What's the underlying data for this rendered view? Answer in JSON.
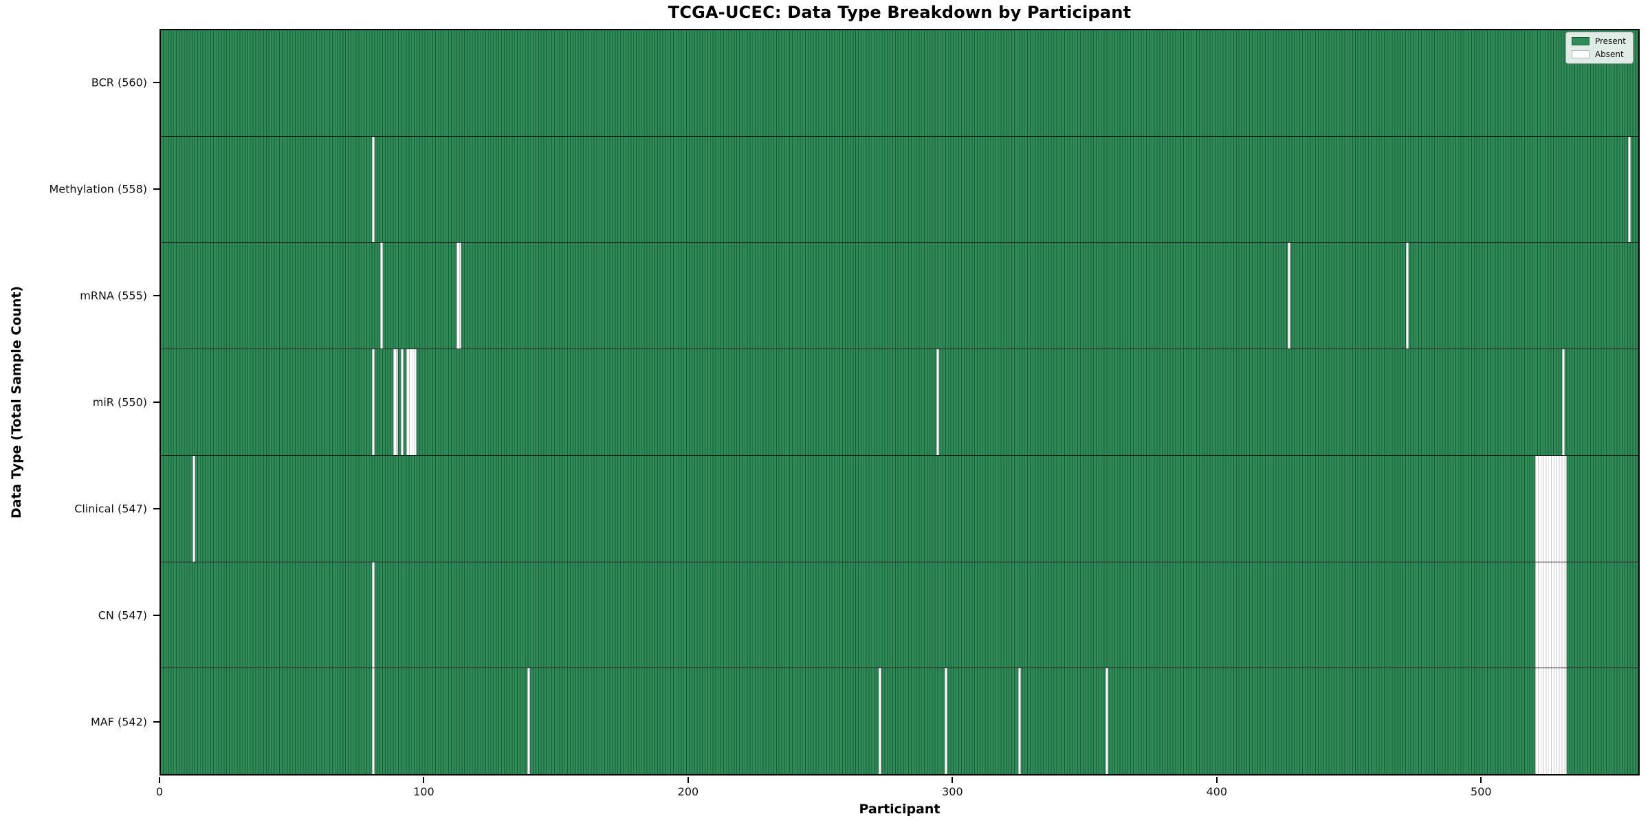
{
  "chart_data": {
    "type": "heatmap",
    "title": "TCGA-UCEC: Data Type Breakdown by Participant",
    "xlabel": "Participant",
    "ylabel": "Data Type (Total Sample Count)",
    "n_participants": 560,
    "x_ticks": [
      0,
      100,
      200,
      300,
      400,
      500
    ],
    "xlim": [
      0,
      560
    ],
    "grid": false,
    "legend_position": "upper right",
    "legend": [
      {
        "label": "Present",
        "color": "#2e8b57"
      },
      {
        "label": "Absent",
        "color": "#ffffff"
      }
    ],
    "colors": {
      "present": "#2e8b57",
      "present_edge": "#1c5c39",
      "absent": "#ffffff",
      "absent_edge": "#c8c8c8"
    },
    "rows": [
      {
        "label": "BCR (560)",
        "total": 560,
        "absent": []
      },
      {
        "label": "Methylation (558)",
        "total": 558,
        "absent": [
          80,
          556
        ]
      },
      {
        "label": "mRNA (555)",
        "total": 555,
        "absent": [
          83,
          112,
          113,
          427,
          472
        ]
      },
      {
        "label": "miR (550)",
        "total": 550,
        "absent": [
          80,
          88,
          89,
          91,
          93,
          94,
          95,
          96,
          294,
          531
        ]
      },
      {
        "label": "Clinical (547)",
        "total": 547,
        "absent": [
          12,
          521,
          522,
          523,
          524,
          525,
          526,
          527,
          528,
          529,
          530,
          531,
          532
        ]
      },
      {
        "label": "CN (547)",
        "total": 547,
        "absent": [
          80,
          521,
          522,
          523,
          524,
          525,
          526,
          527,
          528,
          529,
          530,
          531,
          532
        ]
      },
      {
        "label": "MAF (542)",
        "total": 542,
        "absent": [
          80,
          139,
          272,
          297,
          325,
          358,
          521,
          522,
          523,
          524,
          525,
          526,
          527,
          528,
          529,
          530,
          531,
          532
        ]
      }
    ]
  }
}
